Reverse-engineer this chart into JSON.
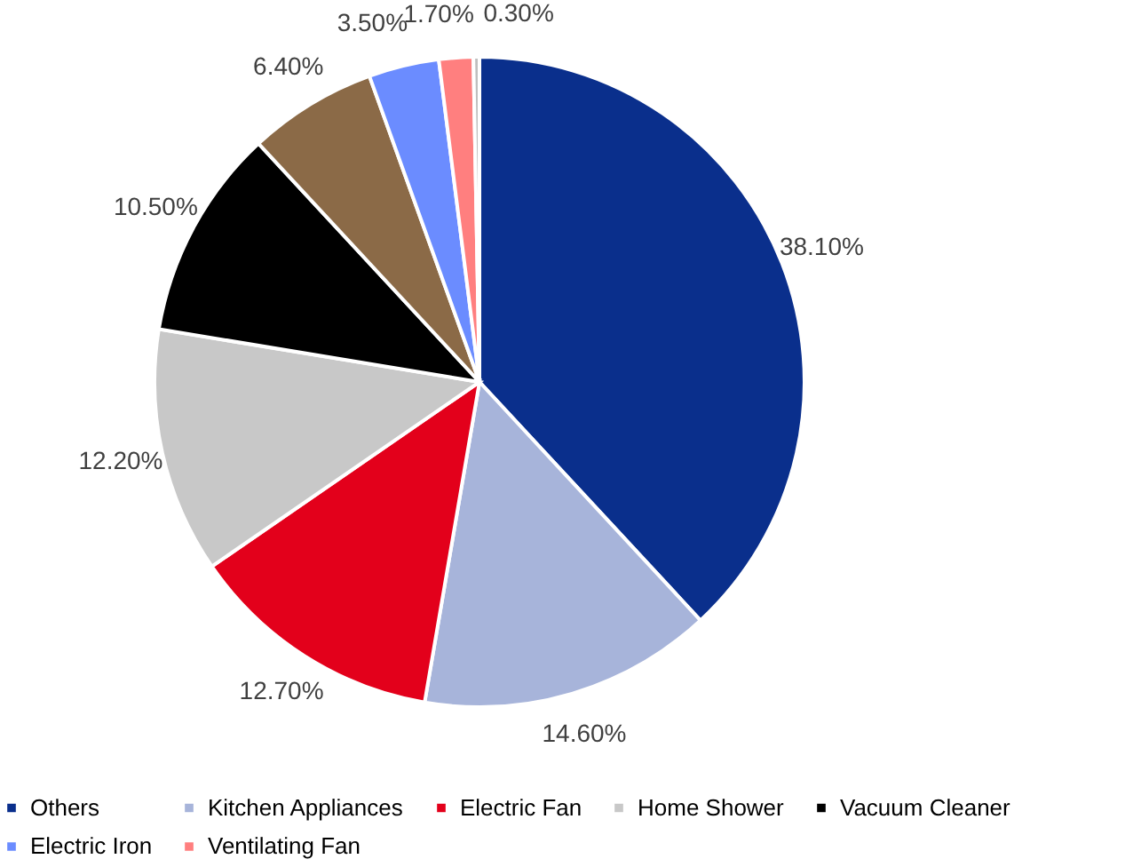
{
  "chart_data": {
    "type": "pie",
    "categories": [
      "Others",
      "Kitchen Appliances",
      "Electric Fan",
      "Home Shower",
      "Vacuum Cleaner",
      null,
      "Electric Iron",
      "Ventilating Fan",
      null
    ],
    "values": [
      38.1,
      14.6,
      12.7,
      12.2,
      10.5,
      6.4,
      3.5,
      1.7,
      0.3
    ],
    "colors": [
      "#0a2f8c",
      "#a7b4da",
      "#e3001b",
      "#c8c8c8",
      "#000000",
      "#8b6a47",
      "#6b8cff",
      "#ff7f7f",
      "#bfbfbf"
    ],
    "value_labels": [
      "38.10%",
      "14.60%",
      "12.70%",
      "12.20%",
      "10.50%",
      "6.40%",
      "3.50%",
      "1.70%",
      "0.30%"
    ],
    "legend": "bottom"
  }
}
